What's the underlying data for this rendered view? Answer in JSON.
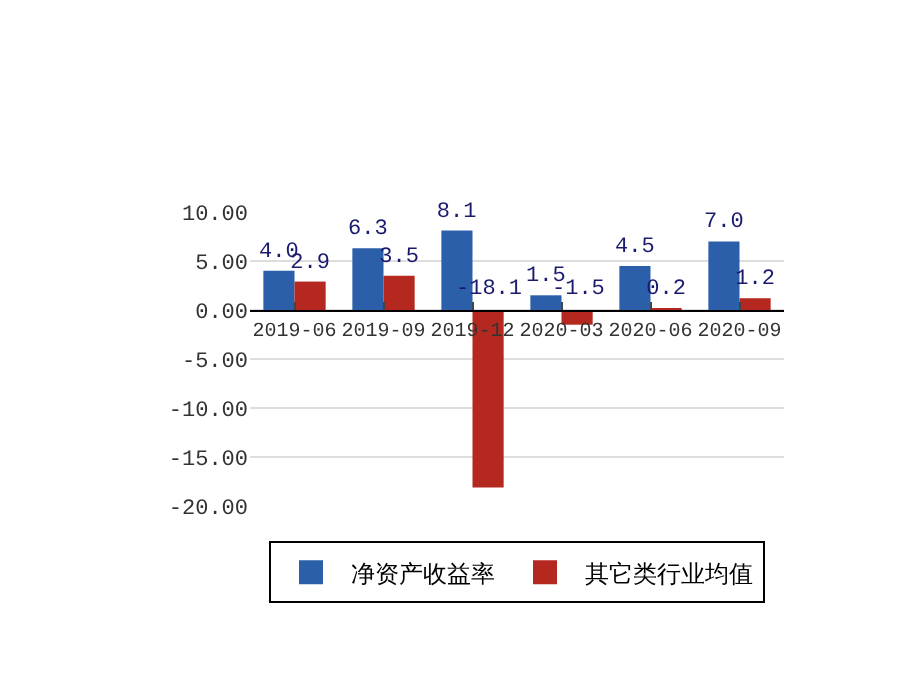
{
  "chart_data": {
    "type": "bar",
    "categories": [
      "2019-06",
      "2019-09",
      "2019-12",
      "2020-03",
      "2020-06",
      "2020-09"
    ],
    "series": [
      {
        "name": "净资产收益率",
        "color": "#2c5faa",
        "values": [
          4.0,
          6.3,
          8.1,
          1.5,
          4.5,
          7.0
        ],
        "value_labels": [
          "4.0",
          "6.3",
          "8.1",
          "1.5",
          "4.5",
          "7.0"
        ]
      },
      {
        "name": "其它类行业均值",
        "color": "#b5281f",
        "values": [
          2.9,
          3.5,
          -18.1,
          -1.5,
          0.2,
          1.2
        ],
        "value_labels": [
          "2.9",
          "3.5",
          "-18.1",
          "-1.5",
          "0.2",
          "1.2"
        ]
      }
    ],
    "ylim": [
      -20,
      10
    ],
    "yticks": [
      {
        "value": 10,
        "label": "10.00"
      },
      {
        "value": 5,
        "label": "5.00"
      },
      {
        "value": 0,
        "label": "0.00"
      },
      {
        "value": -5,
        "label": "-5.00"
      },
      {
        "value": -10,
        "label": "-10.00"
      },
      {
        "value": -15,
        "label": "-15.00"
      },
      {
        "value": -20,
        "label": "-20.00"
      }
    ],
    "grid": "y",
    "legend": "bottom"
  }
}
